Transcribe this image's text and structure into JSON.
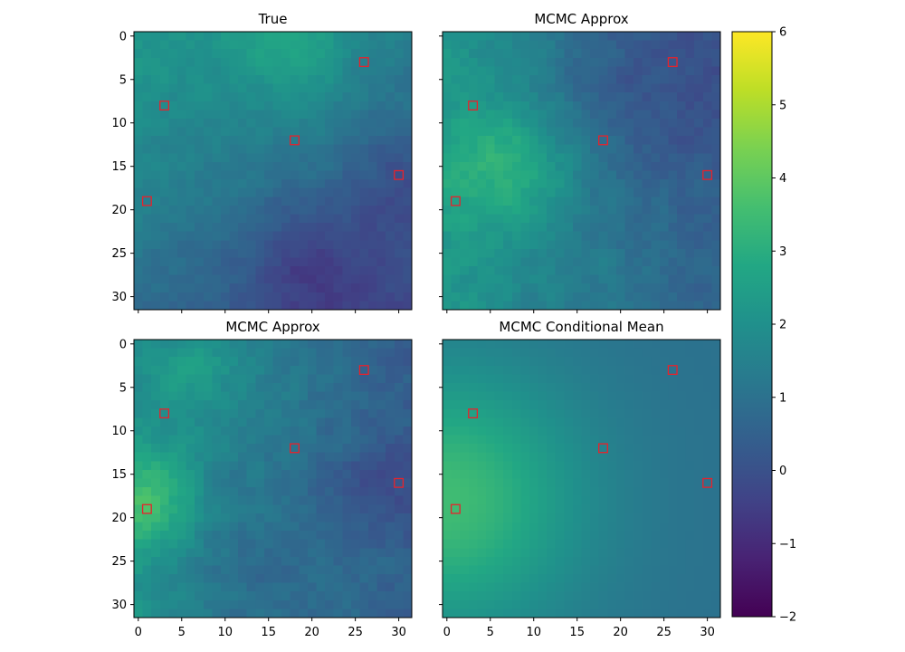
{
  "chart_data": {
    "type": "heatmap",
    "grid_size": 32,
    "colormap": "viridis",
    "colorbar": {
      "range": [
        -2,
        6
      ],
      "ticks": [
        -2,
        -1,
        0,
        1,
        2,
        3,
        4,
        5,
        6
      ],
      "tick_labels": [
        "−2",
        "−1",
        "0",
        "1",
        "2",
        "3",
        "4",
        "5",
        "6"
      ]
    },
    "x_ticks": [
      0,
      5,
      10,
      15,
      20,
      25,
      30
    ],
    "y_ticks": [
      0,
      5,
      10,
      15,
      20,
      25,
      30
    ],
    "observation_points": [
      {
        "x": 26,
        "y": 3
      },
      {
        "x": 3,
        "y": 8
      },
      {
        "x": 18,
        "y": 12
      },
      {
        "x": 30,
        "y": 16
      },
      {
        "x": 1,
        "y": 19
      }
    ],
    "panels": [
      {
        "title": "True",
        "position": "top-left",
        "field_model": {
          "kind": "noisy-gradient",
          "base": 2.3,
          "gradient_x": -0.03,
          "gradient_y": -0.045,
          "bumps": [
            {
              "x": 18,
              "y": 1,
              "sigma": 5,
              "amplitude": 1.0
            },
            {
              "x": 20,
              "y": 27,
              "sigma": 6,
              "amplitude": -1.0
            },
            {
              "x": 30,
              "y": 17,
              "sigma": 4,
              "amplitude": -0.7
            }
          ],
          "noise": 0.32,
          "seed": 11
        }
      },
      {
        "title": "MCMC Approx",
        "position": "top-right",
        "field_model": {
          "kind": "noisy-gradient",
          "base": 2.2,
          "gradient_x": -0.055,
          "gradient_y": 0.0,
          "bumps": [
            {
              "x": 7,
              "y": 15,
              "sigma": 5,
              "amplitude": 1.4
            },
            {
              "x": 22,
              "y": 5,
              "sigma": 8,
              "amplitude": -0.8
            }
          ],
          "noise": 0.38,
          "seed": 23
        }
      },
      {
        "title": "MCMC Approx",
        "position": "bottom-left",
        "field_model": {
          "kind": "noisy-gradient",
          "base": 2.0,
          "gradient_x": -0.05,
          "gradient_y": 0.0,
          "bumps": [
            {
              "x": 1,
              "y": 18,
              "sigma": 4,
              "amplitude": 1.6
            },
            {
              "x": 8,
              "y": 3,
              "sigma": 4,
              "amplitude": 0.7
            },
            {
              "x": 27,
              "y": 16,
              "sigma": 4,
              "amplitude": -0.7
            },
            {
              "x": 12,
              "y": 26,
              "sigma": 6,
              "amplitude": -0.5
            }
          ],
          "noise": 0.4,
          "seed": 37
        }
      },
      {
        "title": "MCMC Conditional Mean",
        "position": "bottom-right",
        "field_model": {
          "kind": "smooth",
          "base": 1.0,
          "gradient_x": 0.0,
          "gradient_y": 0.0,
          "bumps": [
            {
              "x": 0,
              "y": 18,
              "sigma": 11,
              "amplitude": 2.5
            }
          ],
          "noise": 0.0,
          "seed": 1
        }
      }
    ]
  }
}
